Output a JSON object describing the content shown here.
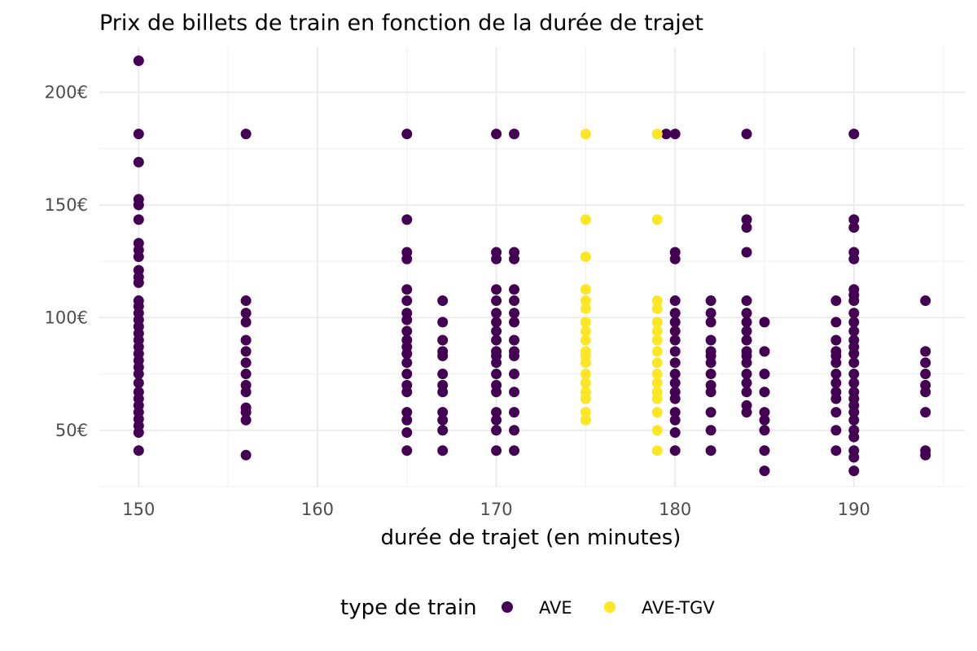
{
  "chart_data": {
    "type": "scatter",
    "title": "Prix de billets de train en fonction de la durée de trajet",
    "xlabel": "durée de trajet (en minutes)",
    "ylabel": "",
    "xlim": [
      147.8,
      196.2
    ],
    "ylim": [
      25,
      220
    ],
    "x_ticks": [
      150,
      160,
      170,
      180,
      190
    ],
    "y_ticks": [
      50,
      100,
      150,
      200
    ],
    "x_tick_labels": [
      "150",
      "160",
      "170",
      "180",
      "190"
    ],
    "y_tick_labels": [
      "50€",
      "100€",
      "150€",
      "200€"
    ],
    "grid": true,
    "legend": {
      "title": "type de train",
      "position": "bottom"
    },
    "series": [
      {
        "name": "AVE",
        "color": "#440154",
        "points": [
          [
            150,
            214
          ],
          [
            150,
            181.5
          ],
          [
            150,
            169
          ],
          [
            150,
            152.5
          ],
          [
            150,
            150
          ],
          [
            150,
            143.5
          ],
          [
            150,
            133
          ],
          [
            150,
            130
          ],
          [
            150,
            127
          ],
          [
            150,
            121
          ],
          [
            150,
            118
          ],
          [
            150,
            115.5
          ],
          [
            150,
            107.5
          ],
          [
            150,
            105
          ],
          [
            150,
            102
          ],
          [
            150,
            99
          ],
          [
            150,
            96
          ],
          [
            150,
            93
          ],
          [
            150,
            90
          ],
          [
            150,
            87
          ],
          [
            150,
            84
          ],
          [
            150,
            81
          ],
          [
            150,
            78
          ],
          [
            150,
            75
          ],
          [
            150,
            71
          ],
          [
            150,
            67
          ],
          [
            150,
            64
          ],
          [
            150,
            61
          ],
          [
            150,
            58
          ],
          [
            150,
            55
          ],
          [
            150,
            52
          ],
          [
            150,
            49
          ],
          [
            150,
            41
          ],
          [
            156,
            181.5
          ],
          [
            156,
            107.5
          ],
          [
            156,
            102
          ],
          [
            156,
            98
          ],
          [
            156,
            90
          ],
          [
            156,
            85
          ],
          [
            156,
            80
          ],
          [
            156,
            75
          ],
          [
            156,
            70
          ],
          [
            156,
            67
          ],
          [
            156,
            60
          ],
          [
            156,
            58
          ],
          [
            156,
            54.5
          ],
          [
            156,
            39
          ],
          [
            165,
            181.5
          ],
          [
            165,
            143.5
          ],
          [
            165,
            129
          ],
          [
            165,
            126
          ],
          [
            165,
            112.5
          ],
          [
            165,
            107.5
          ],
          [
            165,
            102
          ],
          [
            165,
            99
          ],
          [
            165,
            94
          ],
          [
            165,
            90
          ],
          [
            165,
            87
          ],
          [
            165,
            84
          ],
          [
            165,
            80
          ],
          [
            165,
            75
          ],
          [
            165,
            70
          ],
          [
            165,
            67
          ],
          [
            165,
            58
          ],
          [
            165,
            54.5
          ],
          [
            165,
            49
          ],
          [
            165,
            41
          ],
          [
            167,
            107.5
          ],
          [
            167,
            98
          ],
          [
            167,
            90
          ],
          [
            167,
            85
          ],
          [
            167,
            83
          ],
          [
            167,
            75
          ],
          [
            167,
            70
          ],
          [
            167,
            67
          ],
          [
            167,
            58
          ],
          [
            167,
            54.5
          ],
          [
            167,
            50
          ],
          [
            167,
            41
          ],
          [
            170,
            181.5
          ],
          [
            170,
            129
          ],
          [
            170,
            126
          ],
          [
            170,
            112.5
          ],
          [
            170,
            107.5
          ],
          [
            170,
            102
          ],
          [
            170,
            98
          ],
          [
            170,
            94
          ],
          [
            170,
            90
          ],
          [
            170,
            85
          ],
          [
            170,
            83
          ],
          [
            170,
            80
          ],
          [
            170,
            75
          ],
          [
            170,
            70
          ],
          [
            170,
            67
          ],
          [
            170,
            58
          ],
          [
            170,
            54.5
          ],
          [
            170,
            50
          ],
          [
            170,
            41
          ],
          [
            171,
            181.5
          ],
          [
            171,
            129
          ],
          [
            171,
            126
          ],
          [
            171,
            112.5
          ],
          [
            171,
            107.5
          ],
          [
            171,
            102
          ],
          [
            171,
            98
          ],
          [
            171,
            90
          ],
          [
            171,
            85
          ],
          [
            171,
            83
          ],
          [
            171,
            75
          ],
          [
            171,
            67
          ],
          [
            171,
            58
          ],
          [
            171,
            50
          ],
          [
            171,
            41
          ],
          [
            179.5,
            181.5
          ],
          [
            180,
            181.5
          ],
          [
            180,
            129
          ],
          [
            180,
            126
          ],
          [
            180,
            107.5
          ],
          [
            180,
            102
          ],
          [
            180,
            98
          ],
          [
            180,
            94
          ],
          [
            180,
            90
          ],
          [
            180,
            85
          ],
          [
            180,
            80
          ],
          [
            180,
            75
          ],
          [
            180,
            71
          ],
          [
            180,
            67
          ],
          [
            180,
            64
          ],
          [
            180,
            58
          ],
          [
            180,
            54.5
          ],
          [
            180,
            49
          ],
          [
            180,
            41
          ],
          [
            182,
            107.5
          ],
          [
            182,
            102
          ],
          [
            182,
            98
          ],
          [
            182,
            90
          ],
          [
            182,
            85
          ],
          [
            182,
            83
          ],
          [
            182,
            80
          ],
          [
            182,
            75
          ],
          [
            182,
            70
          ],
          [
            182,
            67
          ],
          [
            182,
            58
          ],
          [
            182,
            50
          ],
          [
            182,
            41
          ],
          [
            184,
            181.5
          ],
          [
            184,
            143.5
          ],
          [
            184,
            140
          ],
          [
            184,
            129
          ],
          [
            184,
            107.5
          ],
          [
            184,
            102
          ],
          [
            184,
            98
          ],
          [
            184,
            94
          ],
          [
            184,
            90
          ],
          [
            184,
            85
          ],
          [
            184,
            83
          ],
          [
            184,
            80
          ],
          [
            184,
            75
          ],
          [
            184,
            71
          ],
          [
            184,
            67
          ],
          [
            184,
            61
          ],
          [
            184,
            58
          ],
          [
            185,
            98
          ],
          [
            185,
            85
          ],
          [
            185,
            75
          ],
          [
            185,
            67
          ],
          [
            185,
            58
          ],
          [
            185,
            54.5
          ],
          [
            185,
            50
          ],
          [
            185,
            41
          ],
          [
            185,
            32
          ],
          [
            189,
            107.5
          ],
          [
            189,
            98
          ],
          [
            189,
            90
          ],
          [
            189,
            85
          ],
          [
            189,
            83
          ],
          [
            189,
            80
          ],
          [
            189,
            75
          ],
          [
            189,
            71
          ],
          [
            189,
            67
          ],
          [
            189,
            64
          ],
          [
            189,
            58
          ],
          [
            189,
            50
          ],
          [
            189,
            41
          ],
          [
            190,
            181.5
          ],
          [
            190,
            143.5
          ],
          [
            190,
            140
          ],
          [
            190,
            129
          ],
          [
            190,
            126
          ],
          [
            190,
            112.5
          ],
          [
            190,
            110
          ],
          [
            190,
            107.5
          ],
          [
            190,
            102
          ],
          [
            190,
            98
          ],
          [
            190,
            94
          ],
          [
            190,
            90
          ],
          [
            190,
            87
          ],
          [
            190,
            84
          ],
          [
            190,
            80
          ],
          [
            190,
            75
          ],
          [
            190,
            71
          ],
          [
            190,
            67
          ],
          [
            190,
            64
          ],
          [
            190,
            61
          ],
          [
            190,
            58
          ],
          [
            190,
            54.5
          ],
          [
            190,
            50
          ],
          [
            190,
            47
          ],
          [
            190,
            41
          ],
          [
            190,
            38
          ],
          [
            190,
            32
          ],
          [
            194,
            107.5
          ],
          [
            194,
            85
          ],
          [
            194,
            80
          ],
          [
            194,
            75
          ],
          [
            194,
            70
          ],
          [
            194,
            67
          ],
          [
            194,
            58
          ],
          [
            194,
            41
          ],
          [
            194,
            39
          ]
        ]
      },
      {
        "name": "AVE-TGV",
        "color": "#fde725",
        "points": [
          [
            175,
            181.5
          ],
          [
            175,
            143.5
          ],
          [
            175,
            127
          ],
          [
            175,
            112.5
          ],
          [
            175,
            107.5
          ],
          [
            175,
            104
          ],
          [
            175,
            98
          ],
          [
            175,
            94
          ],
          [
            175,
            90
          ],
          [
            175,
            85
          ],
          [
            175,
            83
          ],
          [
            175,
            80
          ],
          [
            175,
            75
          ],
          [
            175,
            71
          ],
          [
            175,
            67
          ],
          [
            175,
            64
          ],
          [
            175,
            58
          ],
          [
            175,
            54.5
          ],
          [
            179,
            181.5
          ],
          [
            179,
            143.5
          ],
          [
            179,
            107.5
          ],
          [
            179,
            104
          ],
          [
            179,
            98
          ],
          [
            179,
            94
          ],
          [
            179,
            90
          ],
          [
            179,
            85
          ],
          [
            179,
            80
          ],
          [
            179,
            75
          ],
          [
            179,
            71
          ],
          [
            179,
            67
          ],
          [
            179,
            64
          ],
          [
            179,
            58
          ],
          [
            179,
            50
          ],
          [
            179,
            41
          ]
        ]
      }
    ]
  }
}
